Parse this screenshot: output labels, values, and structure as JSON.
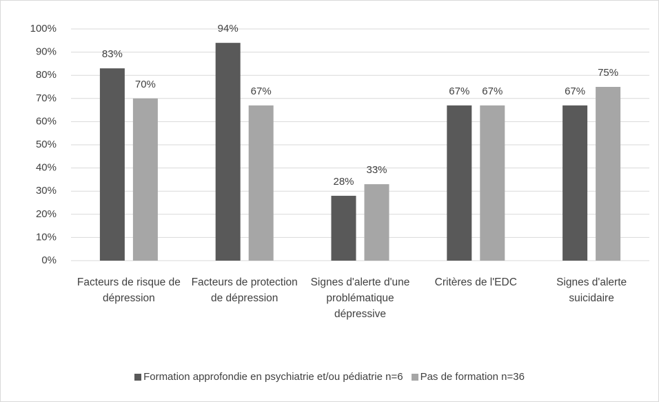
{
  "chart_data": {
    "type": "bar",
    "categories": [
      "Facteurs de risque de dépression",
      "Facteurs de protection de dépression",
      "Signes d'alerte d'une problématique dépressive",
      "Critères de l'EDC",
      "Signes d'alerte suicidaire"
    ],
    "series": [
      {
        "name": "Formation approfondie en psychiatrie et/ou pédiatrie n=6",
        "color": "#595959",
        "values": [
          83,
          94,
          28,
          67,
          67
        ],
        "value_labels": [
          "83%",
          "94%",
          "28%",
          "67%",
          "67%"
        ]
      },
      {
        "name": "Pas de formation n=36",
        "color": "#a6a6a6",
        "values": [
          70,
          67,
          33,
          67,
          75
        ],
        "value_labels": [
          "70%",
          "67%",
          "33%",
          "67%",
          "75%"
        ]
      }
    ],
    "ylim": [
      0,
      100
    ],
    "yticks": [
      {
        "value": 0,
        "label": "0%"
      },
      {
        "value": 10,
        "label": "10%"
      },
      {
        "value": 20,
        "label": "20%"
      },
      {
        "value": 30,
        "label": "30%"
      },
      {
        "value": 40,
        "label": "40%"
      },
      {
        "value": 50,
        "label": "50%"
      },
      {
        "value": 60,
        "label": "60%"
      },
      {
        "value": 70,
        "label": "70%"
      },
      {
        "value": 80,
        "label": "80%"
      },
      {
        "value": 90,
        "label": "90%"
      },
      {
        "value": 100,
        "label": "100%"
      }
    ],
    "grid": true
  }
}
